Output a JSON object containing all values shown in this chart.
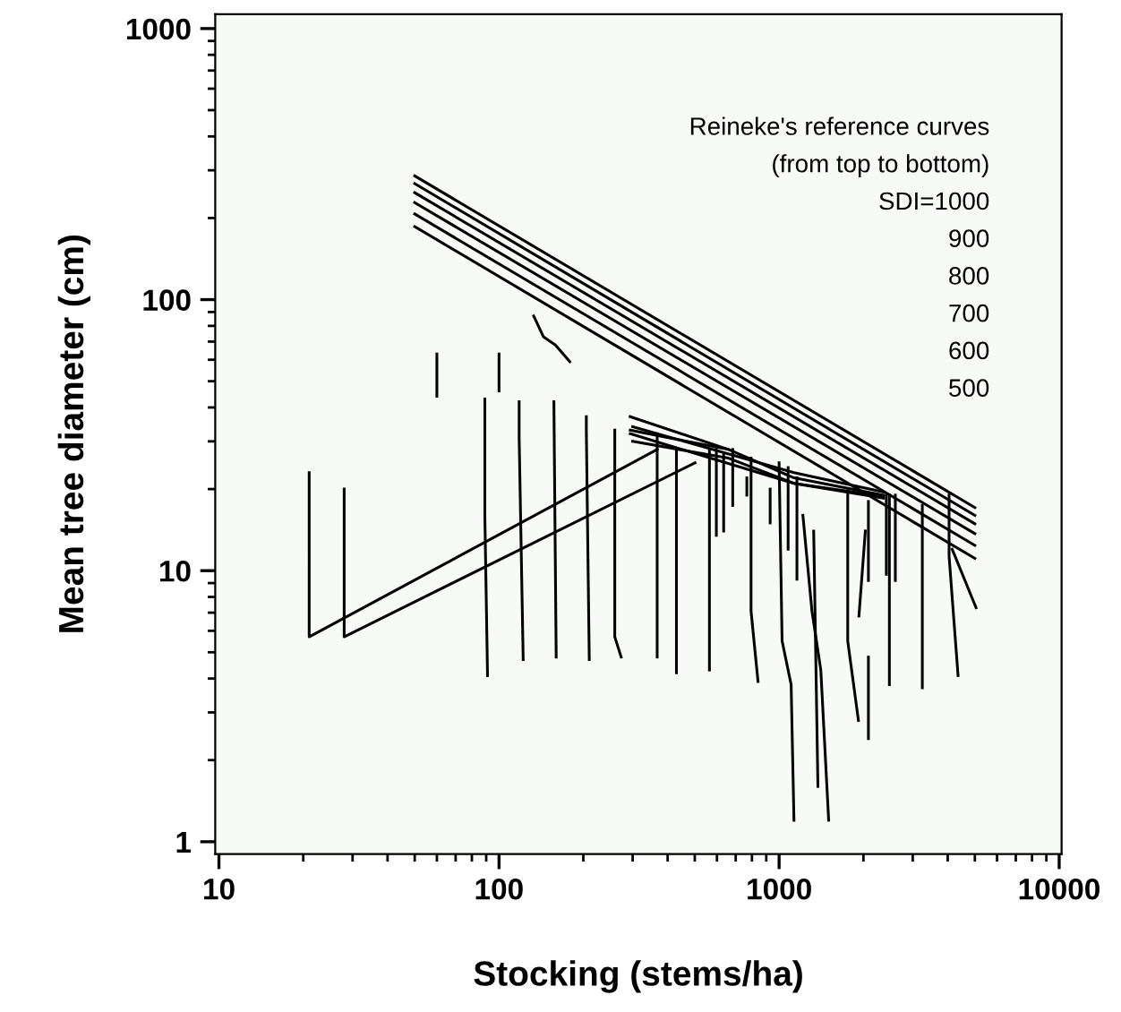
{
  "chart_data": {
    "type": "line",
    "xlabel": "Stocking (stems/ha)",
    "ylabel": "Mean tree diameter (cm)",
    "log": "xy",
    "xlim": [
      9.7,
      10200
    ],
    "ylim": [
      0.9,
      1130
    ],
    "xticks": [
      10,
      {
        "value": 20,
        "label": null
      },
      {
        "value": 30,
        "label": null
      },
      {
        "value": 40,
        "label": null
      },
      {
        "value": 50,
        "label": null
      },
      {
        "value": 60,
        "label": null
      },
      {
        "value": 70,
        "label": null
      },
      {
        "value": 80,
        "label": null
      },
      {
        "value": 90,
        "label": null
      },
      100,
      {
        "value": 200,
        "label": null
      },
      {
        "value": 300,
        "label": null
      },
      {
        "value": 400,
        "label": null
      },
      {
        "value": 500,
        "label": null
      },
      {
        "value": 600,
        "label": null
      },
      {
        "value": 700,
        "label": null
      },
      {
        "value": 800,
        "label": null
      },
      {
        "value": 900,
        "label": null
      },
      1000,
      {
        "value": 2000,
        "label": null
      },
      {
        "value": 3000,
        "label": null
      },
      {
        "value": 4000,
        "label": null
      },
      {
        "value": 5000,
        "label": null
      },
      {
        "value": 6000,
        "label": null
      },
      {
        "value": 7000,
        "label": null
      },
      {
        "value": 8000,
        "label": null
      },
      {
        "value": 9000,
        "label": null
      },
      10000
    ],
    "yticks": [
      1,
      {
        "value": 2,
        "label": null
      },
      {
        "value": 3,
        "label": null
      },
      {
        "value": 4,
        "label": null
      },
      {
        "value": 5,
        "label": null
      },
      {
        "value": 6,
        "label": null
      },
      {
        "value": 7,
        "label": null
      },
      {
        "value": 8,
        "label": null
      },
      {
        "value": 9,
        "label": null
      },
      10,
      {
        "value": 20,
        "label": null
      },
      {
        "value": 30,
        "label": null
      },
      {
        "value": 40,
        "label": null
      },
      {
        "value": 50,
        "label": null
      },
      {
        "value": 60,
        "label": null
      },
      {
        "value": 70,
        "label": null
      },
      {
        "value": 80,
        "label": null
      },
      {
        "value": 90,
        "label": null
      },
      100,
      {
        "value": 200,
        "label": null
      },
      {
        "value": 300,
        "label": null
      },
      {
        "value": 400,
        "label": null
      },
      {
        "value": 500,
        "label": null
      },
      {
        "value": 600,
        "label": null
      },
      {
        "value": 700,
        "label": null
      },
      {
        "value": 800,
        "label": null
      },
      {
        "value": 900,
        "label": null
      },
      1000
    ],
    "grid": false,
    "marker": "none",
    "line_style": "solid",
    "annotations": [
      "Reineke's reference curves",
      "(from top to bottom)",
      "SDI=1000",
      "900",
      "800",
      "700",
      "600",
      "500"
    ],
    "series": [
      {
        "color": "#000000",
        "x": [
          50,
          5000
        ],
        "values": [
          286,
          17.1
        ]
      },
      {
        "color": "#000000",
        "x": [
          50,
          5000
        ],
        "values": [
          268,
          16.0
        ]
      },
      {
        "color": "#000000",
        "x": [
          50,
          5000
        ],
        "values": [
          248,
          14.9
        ]
      },
      {
        "color": "#000000",
        "x": [
          50,
          5000
        ],
        "values": [
          228,
          13.7
        ]
      },
      {
        "color": "#000000",
        "x": [
          50,
          5000
        ],
        "values": [
          207,
          12.4
        ]
      },
      {
        "color": "#000000",
        "x": [
          50,
          5000
        ],
        "values": [
          186,
          11.1
        ]
      },
      {
        "color": "#000000",
        "x": [
          21,
          21,
          367
        ],
        "values": [
          23,
          5.7,
          28
        ]
      },
      {
        "color": "#000000",
        "x": [
          28,
          28,
          501
        ],
        "values": [
          20,
          5.7,
          25
        ]
      },
      {
        "color": "#000000",
        "x": [
          60,
          60
        ],
        "values": [
          63,
          44
        ]
      },
      {
        "color": "#000000",
        "x": [
          100,
          100
        ],
        "values": [
          63,
          46
        ]
      },
      {
        "color": "#000000",
        "x": [
          133,
          144,
          159,
          179
        ],
        "values": [
          87,
          73,
          68,
          59
        ]
      },
      {
        "color": "#000000",
        "x": [
          89,
          89,
          91
        ],
        "values": [
          43,
          16,
          4.1
        ]
      },
      {
        "color": "#000000",
        "x": [
          118,
          118,
          122
        ],
        "values": [
          42,
          31,
          4.7
        ]
      },
      {
        "color": "#000000",
        "x": [
          157,
          160
        ],
        "values": [
          42,
          4.8
        ]
      },
      {
        "color": "#000000",
        "x": [
          205,
          205,
          210
        ],
        "values": [
          37,
          33,
          4.7
        ]
      },
      {
        "color": "#000000",
        "x": [
          259,
          259,
          273
        ],
        "values": [
          33,
          5.7,
          4.8
        ]
      },
      {
        "color": "#000000",
        "x": [
          367,
          367
        ],
        "values": [
          32,
          4.8
        ]
      },
      {
        "color": "#000000",
        "x": [
          430,
          430
        ],
        "values": [
          28,
          4.2
        ]
      },
      {
        "color": "#000000",
        "x": [
          564,
          564
        ],
        "values": [
          28,
          4.3
        ]
      },
      {
        "color": "#000000",
        "x": [
          597,
          597
        ],
        "values": [
          28,
          13.5
        ]
      },
      {
        "color": "#000000",
        "x": [
          634,
          634
        ],
        "values": [
          27,
          14
        ]
      },
      {
        "color": "#000000",
        "x": [
          683,
          683
        ],
        "values": [
          28,
          17.4
        ]
      },
      {
        "color": "#000000",
        "x": [
          767,
          767
        ],
        "values": [
          22,
          19
        ]
      },
      {
        "color": "#000000",
        "x": [
          794,
          794,
          841
        ],
        "values": [
          26,
          7.1,
          3.9
        ]
      },
      {
        "color": "#000000",
        "x": [
          929,
          929
        ],
        "values": [
          20,
          15
        ]
      },
      {
        "color": "#000000",
        "x": [
          1000,
          1025,
          1104,
          1130
        ],
        "values": [
          25,
          5.5,
          3.8,
          1.2
        ]
      },
      {
        "color": "#000000",
        "x": [
          1077,
          1077
        ],
        "values": [
          24,
          12
        ]
      },
      {
        "color": "#000000",
        "x": [
          1158,
          1158
        ],
        "values": [
          22,
          9.3
        ]
      },
      {
        "color": "#000000",
        "x": [
          1216,
          1310,
          1409,
          1503
        ],
        "values": [
          16,
          7.1,
          4.3,
          1.2
        ]
      },
      {
        "color": "#000000",
        "x": [
          1329,
          1376
        ],
        "values": [
          14,
          1.6
        ]
      },
      {
        "color": "#000000",
        "x": [
          1758,
          1758,
          1920
        ],
        "values": [
          20,
          5.5,
          2.8
        ]
      },
      {
        "color": "#000000",
        "x": [
          2032,
          1928
        ],
        "values": [
          14,
          6.8
        ]
      },
      {
        "color": "#000000",
        "x": [
          2084,
          2084
        ],
        "values": [
          4.8,
          2.4
        ]
      },
      {
        "color": "#000000",
        "x": [
          2084,
          2084
        ],
        "values": [
          18,
          9.2
        ]
      },
      {
        "color": "#000000",
        "x": [
          2415,
          2415
        ],
        "values": [
          19,
          9.7
        ]
      },
      {
        "color": "#000000",
        "x": [
          2476,
          2476
        ],
        "values": [
          19,
          3.8
        ]
      },
      {
        "color": "#000000",
        "x": [
          2600,
          2600
        ],
        "values": [
          19,
          9.2
        ]
      },
      {
        "color": "#000000",
        "x": [
          3246,
          3246
        ],
        "values": [
          17.4,
          3.7
        ]
      },
      {
        "color": "#000000",
        "x": [
          4045,
          4045,
          4355
        ],
        "values": [
          19,
          11.3,
          4.1
        ]
      },
      {
        "color": "#000000",
        "x": [
          4150,
          5050
        ],
        "values": [
          12,
          7.3
        ]
      },
      {
        "color": "#000000",
        "x": [
          294,
          660,
          1130,
          2361
        ],
        "values": [
          33,
          28,
          22,
          19
        ]
      },
      {
        "color": "#000000",
        "x": [
          294,
          1130,
          2361
        ],
        "values": [
          32,
          21,
          18.8
        ]
      },
      {
        "color": "#000000",
        "x": [
          300,
          660,
          1130,
          2361
        ],
        "values": [
          30,
          26,
          21,
          18.5
        ]
      },
      {
        "color": "#000000",
        "x": [
          294,
          660
        ],
        "values": [
          37,
          28
        ]
      },
      {
        "color": "#000000",
        "x": [
          300,
          1130,
          2361
        ],
        "values": [
          34,
          23,
          19.5
        ]
      }
    ]
  }
}
